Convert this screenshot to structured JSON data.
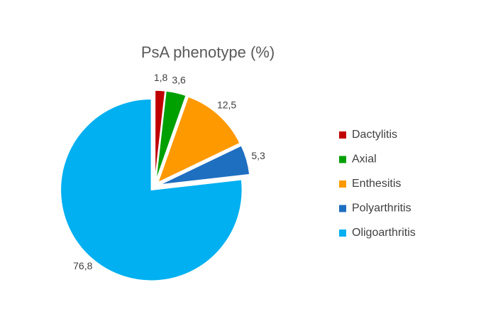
{
  "chart_data": {
    "type": "pie",
    "title": "PsA phenotype (%)",
    "categories": [
      "Dactylitis",
      "Axial",
      "Enthesitis",
      "Polyarthritis",
      "Oligoarthritis"
    ],
    "values": [
      1.8,
      3.6,
      12.5,
      5.3,
      76.8
    ],
    "value_labels": [
      "1,8",
      "3,6",
      "12,5",
      "5,3",
      "76,8"
    ],
    "colors": [
      "#c00000",
      "#00a000",
      "#ff9900",
      "#1f6fc0",
      "#00b0f0"
    ],
    "legend": "right"
  }
}
